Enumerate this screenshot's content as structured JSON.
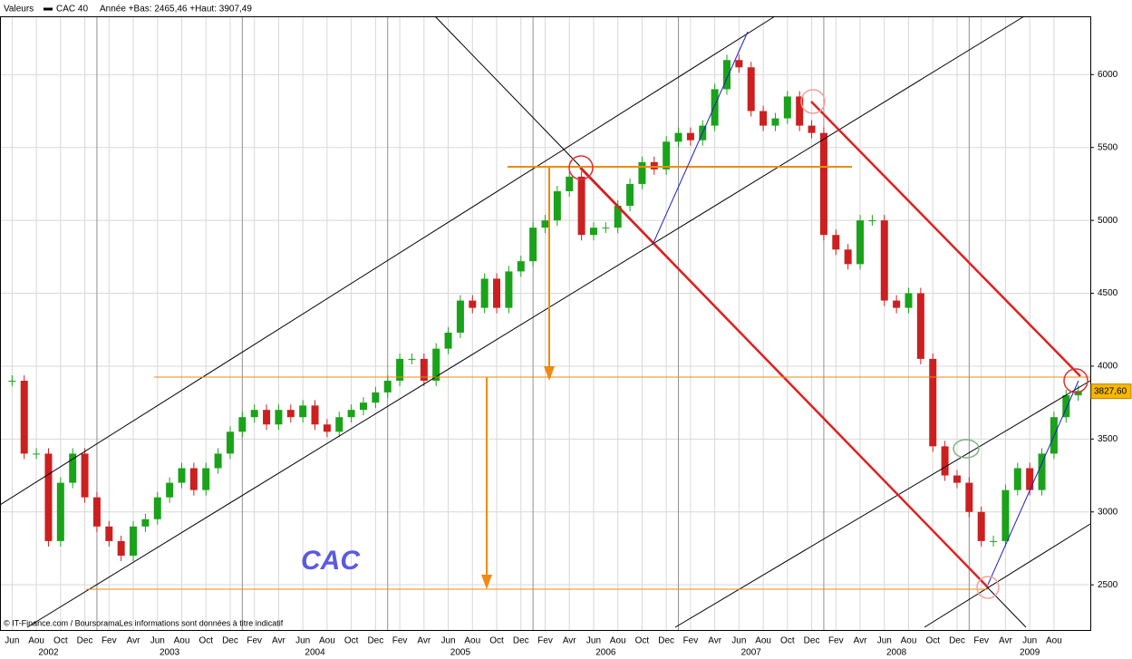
{
  "chart_data": {
    "type": "candlestick",
    "header_label": "Valeurs",
    "range_text": "Année +Bas: 2465,46 +Haut: 3907,49",
    "annotation": "CAC",
    "footer": "© IT-Finance.com / BoursoramaLes informations sont données à titre indicatif",
    "series": [
      {
        "name": "CAC 40",
        "color": "#000000",
        "up_color": "#1aa31a",
        "down_color": "#cc2020",
        "values": [
          3900,
          3400,
          3400,
          2800,
          3200,
          3400,
          3100,
          2900,
          2800,
          2700,
          2900,
          2950,
          3100,
          3200,
          3300,
          3150,
          3300,
          3400,
          3550,
          3650,
          3700,
          3600,
          3700,
          3650,
          3730,
          3600,
          3550,
          3650,
          3700,
          3750,
          3820,
          3900,
          4050,
          4050,
          3900,
          4120,
          4230,
          4450,
          4400,
          4600,
          4400,
          4650,
          4720,
          4950,
          5000,
          5200,
          5300,
          4900,
          4950,
          4950,
          5100,
          5250,
          5400,
          5350,
          5540,
          5600,
          5550,
          5650,
          5900,
          6100,
          6050,
          5750,
          5650,
          5700,
          5850,
          5650,
          5600,
          4900,
          4800,
          4700,
          5000,
          5000,
          4450,
          4400,
          4500,
          4050,
          3450,
          3250,
          3200,
          3000,
          2800,
          2800,
          3150,
          3300,
          3150,
          3400,
          3650,
          3800,
          3830
        ]
      }
    ],
    "x": [
      "2002-06",
      "2002-07",
      "2002-08",
      "2002-09",
      "2002-10",
      "2002-11",
      "2002-12",
      "2003-01",
      "2003-02",
      "2003-03",
      "2003-04",
      "2003-05",
      "2003-06",
      "2003-07",
      "2003-08",
      "2003-09",
      "2003-10",
      "2003-11",
      "2003-12",
      "2004-01",
      "2004-02",
      "2004-03",
      "2004-04",
      "2004-05",
      "2004-06",
      "2004-07",
      "2004-08",
      "2004-09",
      "2004-10",
      "2004-11",
      "2004-12",
      "2005-01",
      "2005-02",
      "2005-03",
      "2005-04",
      "2005-05",
      "2005-06",
      "2005-07",
      "2005-08",
      "2005-09",
      "2005-10",
      "2005-11",
      "2005-12",
      "2006-01",
      "2006-02",
      "2006-03",
      "2006-04",
      "2006-05",
      "2006-06",
      "2006-07",
      "2006-08",
      "2006-09",
      "2006-10",
      "2006-11",
      "2006-12",
      "2007-01",
      "2007-02",
      "2007-03",
      "2007-04",
      "2007-05",
      "2007-06",
      "2007-07",
      "2007-08",
      "2007-09",
      "2007-10",
      "2007-11",
      "2007-12",
      "2008-01",
      "2008-02",
      "2008-03",
      "2008-04",
      "2008-05",
      "2008-06",
      "2008-07",
      "2008-08",
      "2008-09",
      "2008-10",
      "2008-11",
      "2008-12",
      "2009-01",
      "2009-02",
      "2009-03",
      "2009-04",
      "2009-05",
      "2009-06",
      "2009-07",
      "2009-08",
      "2009-09",
      "2009-10"
    ],
    "xlim": [
      "2002-05",
      "2009-11"
    ],
    "xticks": [
      {
        "value": "2002-06",
        "label": "Jun"
      },
      {
        "value": "2002-08",
        "label": "Aou"
      },
      {
        "value": "2002-10",
        "label": "Oct"
      },
      {
        "value": "2002-12",
        "label": "Dec"
      },
      {
        "value": "2003-02",
        "label": "Fev"
      },
      {
        "value": "2003-04",
        "label": "Avr"
      },
      {
        "value": "2003-06",
        "label": "Jun"
      },
      {
        "value": "2003-08",
        "label": "Aou"
      },
      {
        "value": "2003-10",
        "label": "Oct"
      },
      {
        "value": "2003-12",
        "label": "Dec"
      },
      {
        "value": "2004-02",
        "label": "Fev"
      },
      {
        "value": "2004-04",
        "label": "Avr"
      },
      {
        "value": "2004-06",
        "label": "Jun"
      },
      {
        "value": "2004-08",
        "label": "Aou"
      },
      {
        "value": "2004-10",
        "label": "Oct"
      },
      {
        "value": "2004-12",
        "label": "Dec"
      },
      {
        "value": "2005-02",
        "label": "Fev"
      },
      {
        "value": "2005-04",
        "label": "Avr"
      },
      {
        "value": "2005-06",
        "label": "Jun"
      },
      {
        "value": "2005-08",
        "label": "Aou"
      },
      {
        "value": "2005-10",
        "label": "Oct"
      },
      {
        "value": "2005-12",
        "label": "Dec"
      },
      {
        "value": "2006-02",
        "label": "Fev"
      },
      {
        "value": "2006-04",
        "label": "Avr"
      },
      {
        "value": "2006-06",
        "label": "Jun"
      },
      {
        "value": "2006-08",
        "label": "Aou"
      },
      {
        "value": "2006-10",
        "label": "Oct"
      },
      {
        "value": "2006-12",
        "label": "Dec"
      },
      {
        "value": "2007-02",
        "label": "Fev"
      },
      {
        "value": "2007-04",
        "label": "Avr"
      },
      {
        "value": "2007-06",
        "label": "Jun"
      },
      {
        "value": "2007-08",
        "label": "Aou"
      },
      {
        "value": "2007-10",
        "label": "Oct"
      },
      {
        "value": "2007-12",
        "label": "Dec"
      },
      {
        "value": "2008-02",
        "label": "Fev"
      },
      {
        "value": "2008-04",
        "label": "Avr"
      },
      {
        "value": "2008-06",
        "label": "Jun"
      },
      {
        "value": "2008-08",
        "label": "Aou"
      },
      {
        "value": "2008-10",
        "label": "Oct"
      },
      {
        "value": "2008-12",
        "label": "Dec"
      },
      {
        "value": "2009-02",
        "label": "Fev"
      },
      {
        "value": "2009-04",
        "label": "Avr"
      },
      {
        "value": "2009-06",
        "label": "Jun"
      },
      {
        "value": "2009-08",
        "label": "Aou"
      }
    ],
    "year_labels": [
      "2002",
      "2003",
      "2004",
      "2005",
      "2006",
      "2007",
      "2008",
      "2009"
    ],
    "ylim": [
      2190,
      6400
    ],
    "yticks": [
      2500,
      3000,
      3500,
      4000,
      4500,
      5000,
      5500,
      6000
    ],
    "grid": true,
    "last_price": {
      "value": 3827.6,
      "label": "3827,60"
    }
  }
}
